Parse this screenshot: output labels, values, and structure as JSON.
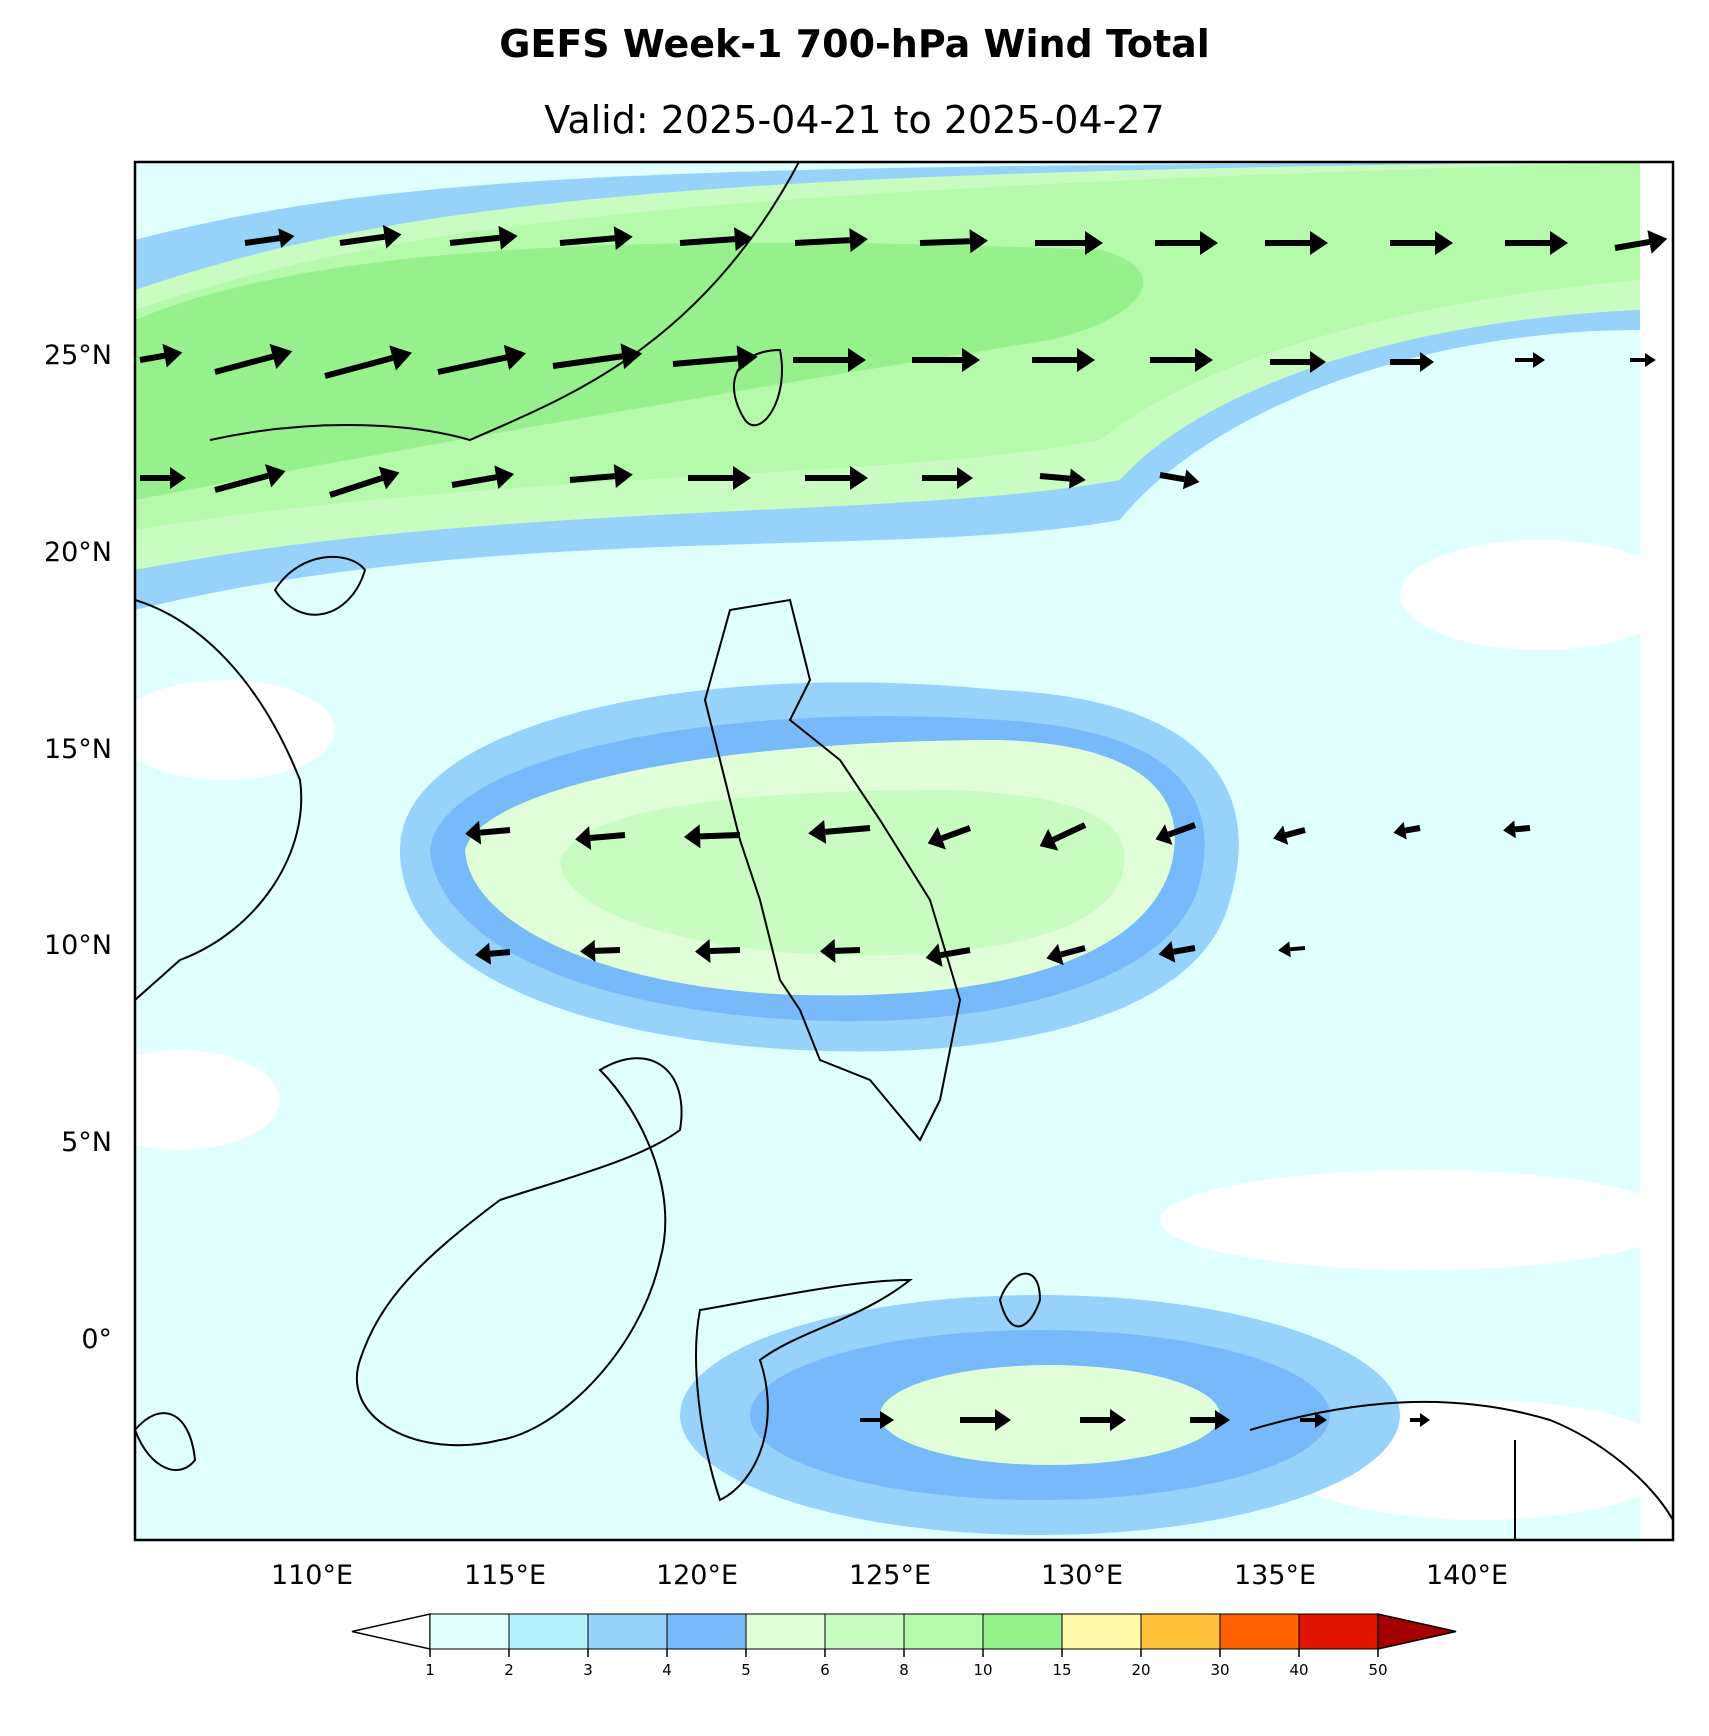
{
  "title": "GEFS Week-1 700-hPa Wind Total",
  "subtitle": "Valid: 2025-04-21 to 2025-04-27",
  "latitude_labels": [
    "25°N",
    "20°N",
    "15°N",
    "10°N",
    "5°N",
    "0°"
  ],
  "longitude_labels": [
    "110°E",
    "115°E",
    "120°E",
    "125°E",
    "130°E",
    "135°E",
    "140°E"
  ],
  "colorbar": {
    "ticks": [
      "1",
      "2",
      "3",
      "4",
      "5",
      "6",
      "8",
      "10",
      "15",
      "20",
      "30",
      "40",
      "50"
    ],
    "colors": [
      "#ffffff",
      "#e0ffff",
      "#b4f0fa",
      "#96d2fa",
      "#78b9fa",
      "#e0ffd8",
      "#c8fcc0",
      "#b4faaa",
      "#96f08c",
      "#fffaaa",
      "#ffc03c",
      "#ff6000",
      "#e11400",
      "#a50000"
    ]
  },
  "map_extent": {
    "lon": [
      105.5,
      145
    ],
    "lat": [
      -5,
      30
    ]
  },
  "field_description_colors": {
    "weak": "#ffffff",
    "light": "#e0ffff",
    "moderate_blue": "#96d2fa",
    "strong_green": "#96f08c"
  },
  "wind_vectors_sample": [
    {
      "lon": 108,
      "lat": 28,
      "dir_deg": 10,
      "speed": 8
    },
    {
      "lon": 120,
      "lat": 25,
      "dir_deg": 5,
      "speed": 12
    },
    {
      "lon": 117,
      "lat": 13,
      "dir_deg": 180,
      "speed": 6
    },
    {
      "lon": 125,
      "lat": 13,
      "dir_deg": 200,
      "speed": 7
    }
  ]
}
